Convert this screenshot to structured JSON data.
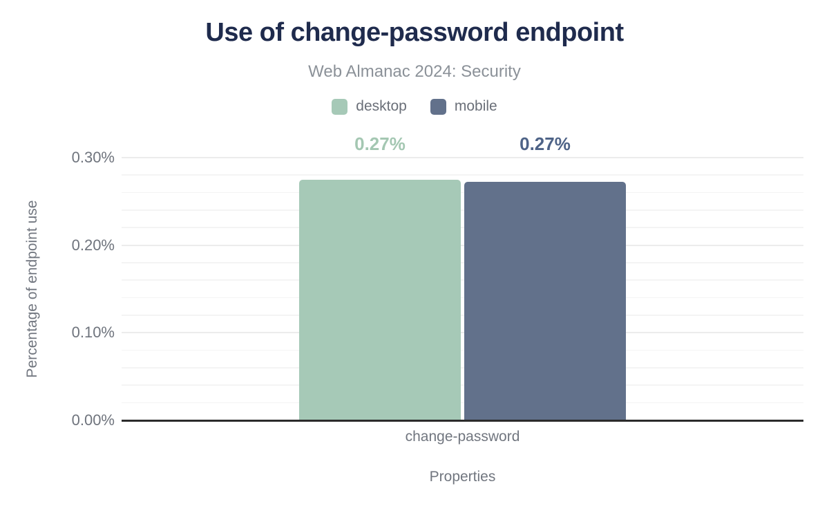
{
  "header": {
    "title": "Use of change-password endpoint",
    "subtitle": "Web Almanac 2024: Security"
  },
  "colors": {
    "title_text": "#1f2b4d",
    "subtitle_text": "#8b9198",
    "axis_text": "#6f747d",
    "axis_line": "#2b2b2b",
    "grid_major": "#ececec",
    "grid_minor": "#f4f4f4"
  },
  "chart_data": {
    "type": "bar",
    "title": "Use of change-password endpoint",
    "subtitle": "Web Almanac 2024: Security",
    "categories": [
      "change-password"
    ],
    "series": [
      {
        "name": "desktop",
        "color": "#a6c9b7",
        "label_color": "#a4c7b2",
        "values": [
          0.27
        ],
        "values_precise": [
          0.275
        ],
        "data_labels": [
          "0.27%"
        ]
      },
      {
        "name": "mobile",
        "color": "#62718b",
        "label_color": "#4e6387",
        "values": [
          0.27
        ],
        "values_precise": [
          0.272
        ],
        "data_labels": [
          "0.27%"
        ]
      }
    ],
    "xlabel": "Properties",
    "ylabel": "Percentage of endpoint use",
    "ylim": [
      0,
      0.3
    ],
    "ytick_step_major": 0.1,
    "ytick_step_minor": 0.02,
    "ytick_labels": [
      "0.00%",
      "0.10%",
      "0.20%",
      "0.30%"
    ],
    "legend_position": "top",
    "grid": true
  }
}
